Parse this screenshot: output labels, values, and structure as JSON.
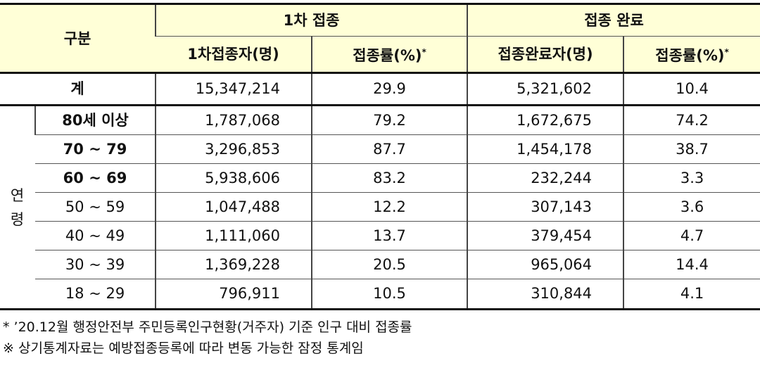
{
  "header": {
    "category": "구분",
    "first_dose_group": "1차 접종",
    "complete_group": "접종 완료",
    "col_first_count": "1차접종자(명)",
    "col_first_rate": "접종률(%)",
    "col_complete_count": "접종완료자(명)",
    "col_complete_rate": "접종률(%)",
    "asterisk": "*"
  },
  "total": {
    "label": "계",
    "first_count": "15,347,214",
    "first_rate": "29.9",
    "complete_count": "5,321,602",
    "complete_rate": "10.4"
  },
  "age_label_1": "연",
  "age_label_2": "령",
  "rows": [
    {
      "label": "80세 이상",
      "first_count": "1,787,068",
      "first_rate": "79.2",
      "complete_count": "1,672,675",
      "complete_rate": "74.2"
    },
    {
      "label": "70 ~ 79",
      "first_count": "3,296,853",
      "first_rate": "87.7",
      "complete_count": "1,454,178",
      "complete_rate": "38.7"
    },
    {
      "label": "60 ~ 69",
      "first_count": "5,938,606",
      "first_rate": "83.2",
      "complete_count": "232,244",
      "complete_rate": "3.3"
    },
    {
      "label": "50 ~ 59",
      "first_count": "1,047,488",
      "first_rate": "12.2",
      "complete_count": "307,143",
      "complete_rate": "3.6"
    },
    {
      "label": "40 ~ 49",
      "first_count": "1,111,060",
      "first_rate": "13.7",
      "complete_count": "379,454",
      "complete_rate": "4.7"
    },
    {
      "label": "30 ~ 39",
      "first_count": "1,369,228",
      "first_rate": "20.5",
      "complete_count": "965,064",
      "complete_rate": "14.4"
    },
    {
      "label": "18 ~ 29",
      "first_count": "796,911",
      "first_rate": "10.5",
      "complete_count": "310,844",
      "complete_rate": "4.1"
    }
  ],
  "notes": {
    "note1": "* ’20.12월 행정안전부 주민등록인구현황(거주자) 기준 인구 대비 접종률",
    "note2": "※ 상기통계자료는 예방접종등록에 따라 변동 가능한 잠정 통계임"
  }
}
